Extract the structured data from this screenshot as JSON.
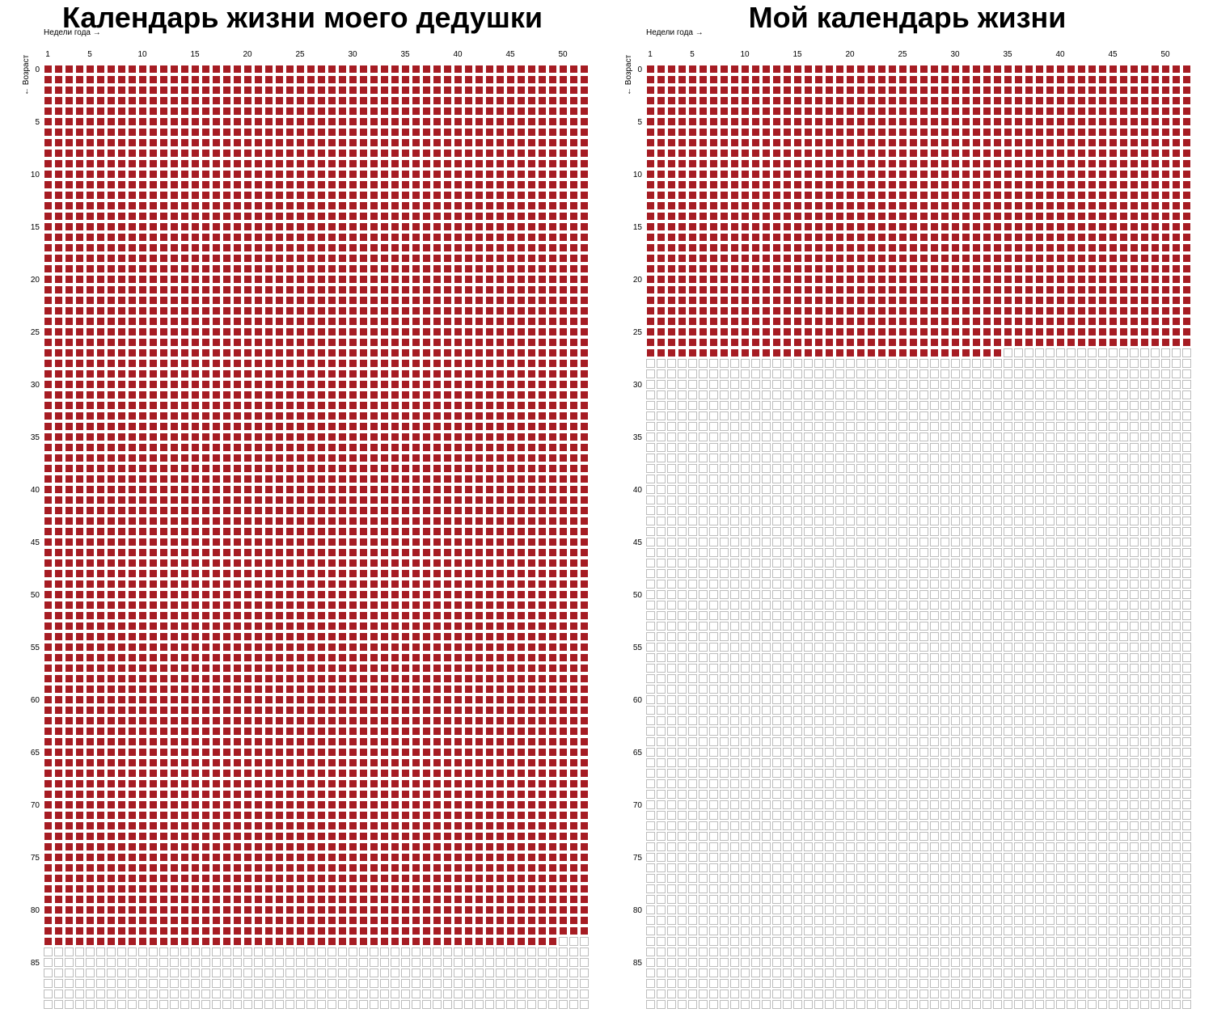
{
  "colors": {
    "lived": "#a61c23",
    "future_fill": "#ffffff",
    "future_stroke": "#bdbdbd"
  },
  "chart_data": [
    {
      "type": "heatmap",
      "title": "Календарь жизни моего дедушки",
      "xlabel": "Недели года →",
      "ylabel": "← Возраст",
      "weeks_per_year": 52,
      "total_years": 90,
      "x_ticks": [
        1,
        5,
        10,
        15,
        20,
        25,
        30,
        35,
        40,
        45,
        50
      ],
      "y_ticks": [
        0,
        5,
        10,
        15,
        20,
        25,
        30,
        35,
        40,
        45,
        50,
        55,
        60,
        65,
        70,
        75,
        80,
        85
      ],
      "lived": {
        "full_years": 83,
        "extra_weeks_in_last_year": 49
      }
    },
    {
      "type": "heatmap",
      "title": "Мой календарь жизни",
      "xlabel": "Недели года →",
      "ylabel": "← Возраст",
      "weeks_per_year": 52,
      "total_years": 90,
      "x_ticks": [
        1,
        5,
        10,
        15,
        20,
        25,
        30,
        35,
        40,
        45,
        50
      ],
      "y_ticks": [
        0,
        5,
        10,
        15,
        20,
        25,
        30,
        35,
        40,
        45,
        50,
        55,
        60,
        65,
        70,
        75,
        80,
        85
      ],
      "lived": {
        "full_years": 27,
        "extra_weeks_in_last_year": 34
      }
    }
  ]
}
